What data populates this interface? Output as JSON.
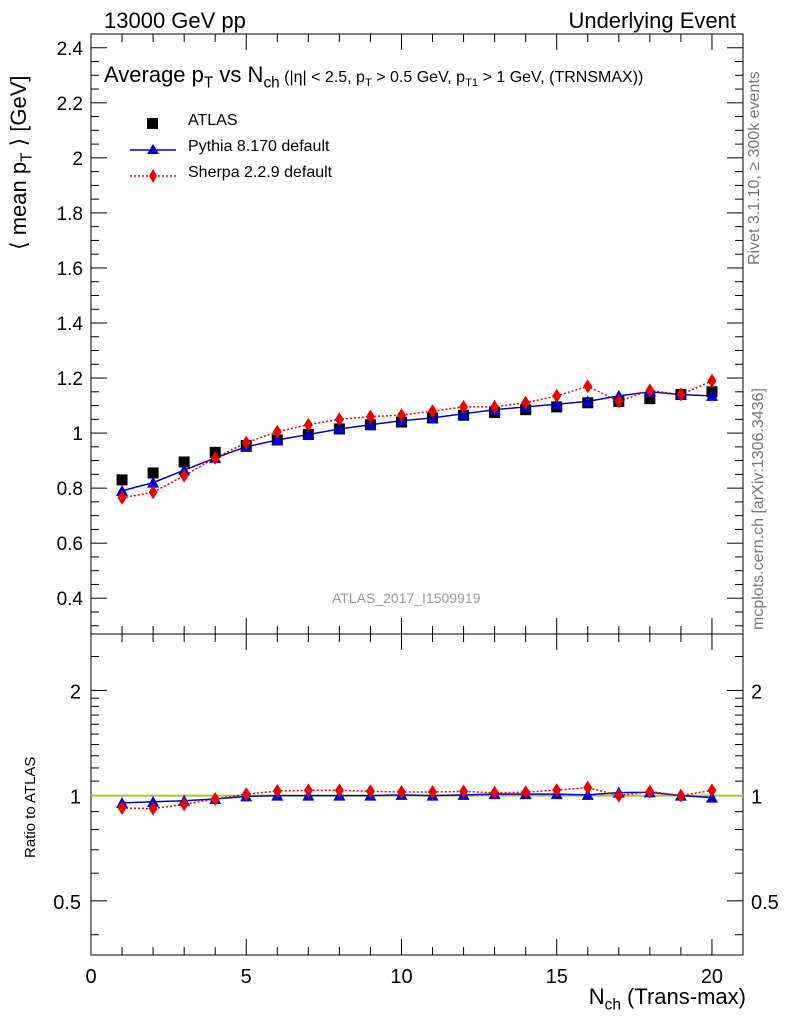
{
  "header": {
    "left": "13000 GeV pp",
    "right": "Underlying Event"
  },
  "side_labels": {
    "rivet": "Rivet 3.1.10, ≥ 300k events",
    "mcplots": "mcplots.cern.ch [arXiv:1306.3436]"
  },
  "watermark": "ATLAS_2017_I1509919",
  "plot_title": {
    "main_a": "Average p",
    "main_a_sub": "T",
    "main_b": " vs N",
    "main_b_sub": "ch",
    "cuts_a": " (|η| < 2.5, p",
    "cuts_a_sub": "T",
    "cuts_b": " > 0.5 GeV, p",
    "cuts_b_sub": "T1",
    "cuts_c": " > 1 GeV, (TRNSMAX))"
  },
  "axes": {
    "ylabel_a": "⟨ mean p",
    "ylabel_sub": "T",
    "ylabel_b": " ⟩ [GeV]",
    "xlabel_a": "N",
    "xlabel_sub": "ch",
    "xlabel_b": " (Trans-max)",
    "ratio_ylabel": "Ratio to ATLAS"
  },
  "legend": {
    "atlas": "ATLAS",
    "pythia": "Pythia 8.170 default",
    "sherpa": "Sherpa 2.2.9 default"
  },
  "colors": {
    "atlas": "#000000",
    "pythia": "#0000cc",
    "sherpa": "#ee0000",
    "ratio_band": "#99cc33"
  },
  "chart_data": [
    {
      "type": "scatter",
      "title": "Average pT vs Nch",
      "xlabel": "Nch (Trans-max)",
      "ylabel": "⟨ mean pT ⟩ [GeV]",
      "xlim": [
        0,
        21
      ],
      "ylim": [
        0.27,
        2.45
      ],
      "xticks": [
        0,
        5,
        10,
        15,
        20
      ],
      "yticks": [
        0.4,
        0.6,
        0.8,
        1,
        1.2,
        1.4,
        1.6,
        1.8,
        2,
        2.2,
        2.4
      ],
      "x": [
        1,
        2,
        3,
        4,
        5,
        6,
        7,
        8,
        9,
        10,
        11,
        12,
        13,
        14,
        15,
        16,
        17,
        18,
        19,
        20
      ],
      "series": [
        {
          "name": "ATLAS",
          "style": "marker-square",
          "values": [
            0.83,
            0.855,
            0.895,
            0.93,
            0.955,
            0.975,
            0.995,
            1.015,
            1.03,
            1.04,
            1.055,
            1.065,
            1.075,
            1.085,
            1.095,
            1.11,
            1.115,
            1.125,
            1.14,
            1.15
          ]
        },
        {
          "name": "Pythia 8.170 default",
          "style": "solid-triangle",
          "values": [
            0.79,
            0.82,
            0.865,
            0.91,
            0.95,
            0.975,
            0.995,
            1.015,
            1.03,
            1.045,
            1.055,
            1.07,
            1.085,
            1.095,
            1.105,
            1.115,
            1.135,
            1.15,
            1.14,
            1.135
          ]
        },
        {
          "name": "Sherpa 2.2.9 default",
          "style": "dotted-diamond",
          "values": [
            0.765,
            0.785,
            0.845,
            0.91,
            0.965,
            1.005,
            1.03,
            1.05,
            1.06,
            1.065,
            1.08,
            1.095,
            1.095,
            1.11,
            1.135,
            1.17,
            1.115,
            1.155,
            1.14,
            1.19
          ]
        }
      ]
    },
    {
      "type": "scatter",
      "ylabel": "Ratio to ATLAS",
      "log_y": true,
      "xlim": [
        0,
        21
      ],
      "ylim": [
        0.35,
        2.9
      ],
      "xticks": [
        0,
        5,
        10,
        15,
        20
      ],
      "yticks": [
        0.5,
        1,
        2
      ],
      "x": [
        1,
        2,
        3,
        4,
        5,
        6,
        7,
        8,
        9,
        10,
        11,
        12,
        13,
        14,
        15,
        16,
        17,
        18,
        19,
        20
      ],
      "series": [
        {
          "name": "Pythia 8.170 default",
          "style": "solid-triangle",
          "values": [
            0.953,
            0.96,
            0.967,
            0.978,
            0.995,
            1.0,
            1.0,
            1.0,
            1.0,
            1.005,
            1.0,
            1.005,
            1.01,
            1.01,
            1.01,
            1.005,
            1.02,
            1.022,
            1.0,
            0.987
          ]
        },
        {
          "name": "Sherpa 2.2.9 default",
          "style": "dotted-diamond",
          "values": [
            0.922,
            0.918,
            0.944,
            0.978,
            1.01,
            1.031,
            1.035,
            1.035,
            1.029,
            1.024,
            1.024,
            1.028,
            1.019,
            1.023,
            1.037,
            1.054,
            1.0,
            1.027,
            1.0,
            1.035
          ]
        }
      ]
    }
  ]
}
